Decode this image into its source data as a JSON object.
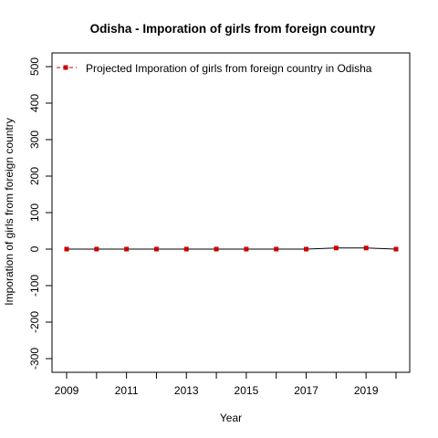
{
  "chart_data": {
    "type": "line",
    "title": "Odisha  -  Imporation of girls from foreign country",
    "xlabel": "Year",
    "ylabel": "Imporation of girls from foreign country",
    "x": [
      2009,
      2010,
      2011,
      2012,
      2013,
      2014,
      2015,
      2016,
      2017,
      2018,
      2019,
      2020
    ],
    "x_tick_labels": [
      "2009",
      "2011",
      "2013",
      "2015",
      "2017",
      "2019"
    ],
    "y_tick_labels": [
      "-300",
      "-200",
      "-100",
      "0",
      "100",
      "200",
      "300",
      "400",
      "500"
    ],
    "xlim": [
      2009,
      2020
    ],
    "ylim": [
      -300,
      500
    ],
    "series": [
      {
        "name": "Projected  Imporation of girls from foreign country  in  Odisha",
        "values": [
          0,
          0,
          0,
          0,
          0,
          0,
          0,
          0,
          0,
          3,
          3,
          0
        ],
        "color": "#cc0000",
        "line_color": "#000000",
        "marker": "square"
      }
    ],
    "legend": {
      "position": "top-left",
      "label": "Projected  Imporation of girls from foreign country  in  Odisha",
      "line_style": "dashed",
      "line_color": "#cc0000",
      "marker_color": "#cc0000"
    },
    "grid": false
  }
}
